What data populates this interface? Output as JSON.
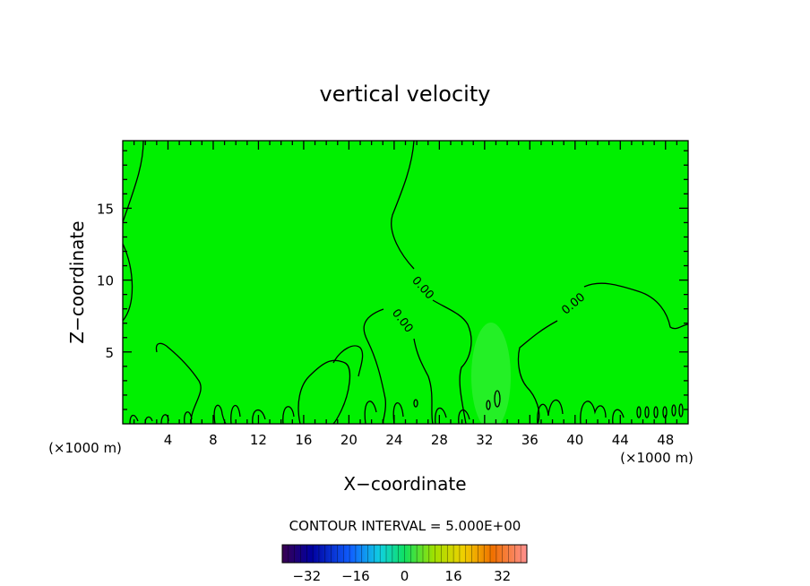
{
  "chart_data": {
    "type": "contour",
    "title": "vertical velocity",
    "xlabel": "X−coordinate",
    "ylabel": "Z−coordinate",
    "x_unit_left": "(×1000 m)",
    "x_unit_right": "(×1000 m)",
    "xlim": [
      0,
      50
    ],
    "ylim": [
      0,
      19.7
    ],
    "x_ticks": [
      4,
      8,
      12,
      16,
      20,
      24,
      28,
      32,
      36,
      40,
      44,
      48
    ],
    "y_ticks": [
      5,
      10,
      15
    ],
    "field_color": "#00f000",
    "contour_labels": [
      {
        "text": "0.00",
        "x": 26.6,
        "y": 9.5,
        "angle": 48
      },
      {
        "text": "0.00",
        "x": 24.8,
        "y": 7.2,
        "angle": 52
      },
      {
        "text": "0.00",
        "x": 39.8,
        "y": 8.4,
        "angle": -40
      }
    ],
    "contour_interval_label": "CONTOUR INTERVAL = 5.000E+00",
    "colorbar": {
      "min": -40,
      "max": 40,
      "tick_labels": [
        "−32",
        "−16",
        "0",
        "16",
        "32"
      ],
      "tick_values": [
        -32,
        -16,
        0,
        16,
        32
      ]
    }
  }
}
